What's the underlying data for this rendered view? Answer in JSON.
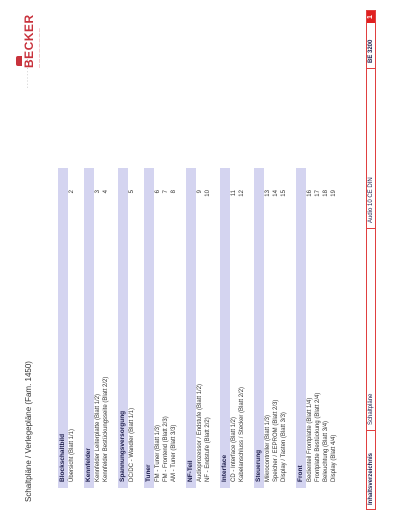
{
  "header": {
    "doc_title": "Schaltpläne / Verlegepläne (Fam. 1450)",
    "page_ref": "· · · · · · ·  · · ·",
    "logo_text": "BECKER",
    "logo_sub": "— — — — — — — —"
  },
  "toc": [
    {
      "title": "Blockschaltbild",
      "entries": [
        {
          "text": "Übersicht (Blatt 1/1)",
          "page": "2"
        }
      ]
    },
    {
      "title": "Kennfelder",
      "entries": [
        {
          "text": "Kennfelder Leiterplatte (Blatt 1/2)",
          "page": "3"
        },
        {
          "text": "Kennfelder Bestückungsseite (Blatt 2/2)",
          "page": "4"
        }
      ]
    },
    {
      "title": "Spannungsversorgung",
      "entries": [
        {
          "text": "DC/DC - Wandler (Blatt 1/1)",
          "page": "5"
        }
      ]
    },
    {
      "title": "Tuner",
      "entries": [
        {
          "text": "FM - Tuner (Blatt 1/3)",
          "page": "6"
        },
        {
          "text": "FM - Frontend (Blatt 2/3)",
          "page": "7"
        },
        {
          "text": "AM - Tuner (Blatt 3/3)",
          "page": "8"
        }
      ]
    },
    {
      "title": "NF-Teil",
      "entries": [
        {
          "text": "Audioprozessor / Endstufe (Blatt 1/2)",
          "page": "9"
        },
        {
          "text": "NF - Endstufe (Blatt 2/2)",
          "page": "10"
        }
      ]
    },
    {
      "title": "Interface",
      "entries": [
        {
          "text": "CD - Interface (Blatt 1/2)",
          "page": "11"
        },
        {
          "text": "Kabelanschluss / Stecker (Blatt 2/2)",
          "page": "12"
        }
      ]
    },
    {
      "title": "Steuerung",
      "entries": [
        {
          "text": "Mikrocontroller (Blatt 1/3)",
          "page": "13"
        },
        {
          "text": "Speicher / EEPROM (Blatt 2/3)",
          "page": "14"
        },
        {
          "text": "Display / Tasten (Blatt 3/3)",
          "page": "15"
        }
      ]
    },
    {
      "title": "Front",
      "entries": [
        {
          "text": "Bedienteil Frontplatte (Blatt 1/4)",
          "page": "16"
        },
        {
          "text": "Frontplatte Bestückung (Blatt 2/4)",
          "page": "17"
        },
        {
          "text": "Beleuchtung (Blatt 3/4)",
          "page": "18"
        },
        {
          "text": "Display (Blatt 4/4)",
          "page": "19"
        }
      ]
    }
  ],
  "footer": {
    "section": "Inhaltsverzeichnis",
    "doc_type": "Schaltpläne",
    "device": "Audio 10 CE DIN",
    "model": "BE 3200",
    "page_number": "1"
  }
}
